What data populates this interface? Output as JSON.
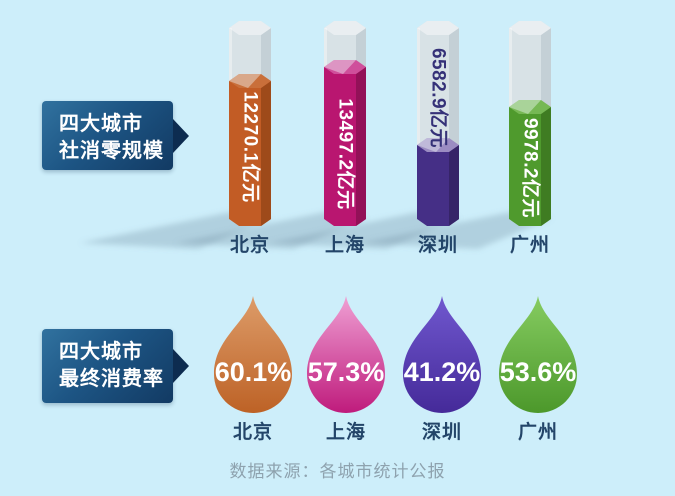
{
  "canvas": {
    "background": "#cdeefa"
  },
  "retail_section": {
    "callout": {
      "line1": "四大城市",
      "line2": "社消零规模"
    }
  },
  "consumption_section": {
    "callout": {
      "line1": "四大城市",
      "line2": "最终消费率"
    }
  },
  "footer": {
    "text": "数据来源：各城市统计公报"
  },
  "chart_data": [
    {
      "type": "bar",
      "title": "四大城市社消零规模",
      "bar_style": "3d-hex-tube",
      "categories": [
        "北京",
        "上海",
        "深圳",
        "广州"
      ],
      "values": [
        12270.1,
        13497.2,
        6582.9,
        9978.2
      ],
      "unit": "亿元",
      "value_labels": [
        "12270.1亿元",
        "13497.2亿元",
        "6582.9亿元",
        "9978.2亿元"
      ],
      "ylim": [
        0,
        13497.2
      ],
      "colors": [
        {
          "front": "#c25c25",
          "side": "#9e4a1a",
          "cap": "#c96f3a",
          "label": "#ffffff"
        },
        {
          "front": "#b91670",
          "side": "#931158",
          "cap": "#cf4f9b",
          "label": "#ffffff"
        },
        {
          "front": "#452f86",
          "side": "#362468",
          "cap": "#9b8cc2",
          "label": "#353178"
        },
        {
          "front": "#4f9a2d",
          "side": "#3f7c22",
          "cap": "#76b854",
          "label": "#ffffff"
        }
      ],
      "glass": {
        "body": "#d8e2e6",
        "side": "#c4d0d6",
        "cap": "#e9eef1"
      }
    },
    {
      "type": "bar",
      "marker": "droplet",
      "title": "四大城市最终消费率",
      "categories": [
        "北京",
        "上海",
        "深圳",
        "广州"
      ],
      "values": [
        60.1,
        57.3,
        41.2,
        53.6
      ],
      "unit": "%",
      "value_labels": [
        "60.1%",
        "57.3%",
        "41.2%",
        "53.6%"
      ],
      "colors": [
        {
          "top": "#dd9c69",
          "bottom": "#bd6226"
        },
        {
          "top": "#efa0d4",
          "bottom": "#bf1b7c"
        },
        {
          "top": "#7058cf",
          "bottom": "#452a99"
        },
        {
          "top": "#86cc61",
          "bottom": "#4c982b"
        }
      ],
      "value_label_color": "#ffffff"
    }
  ]
}
